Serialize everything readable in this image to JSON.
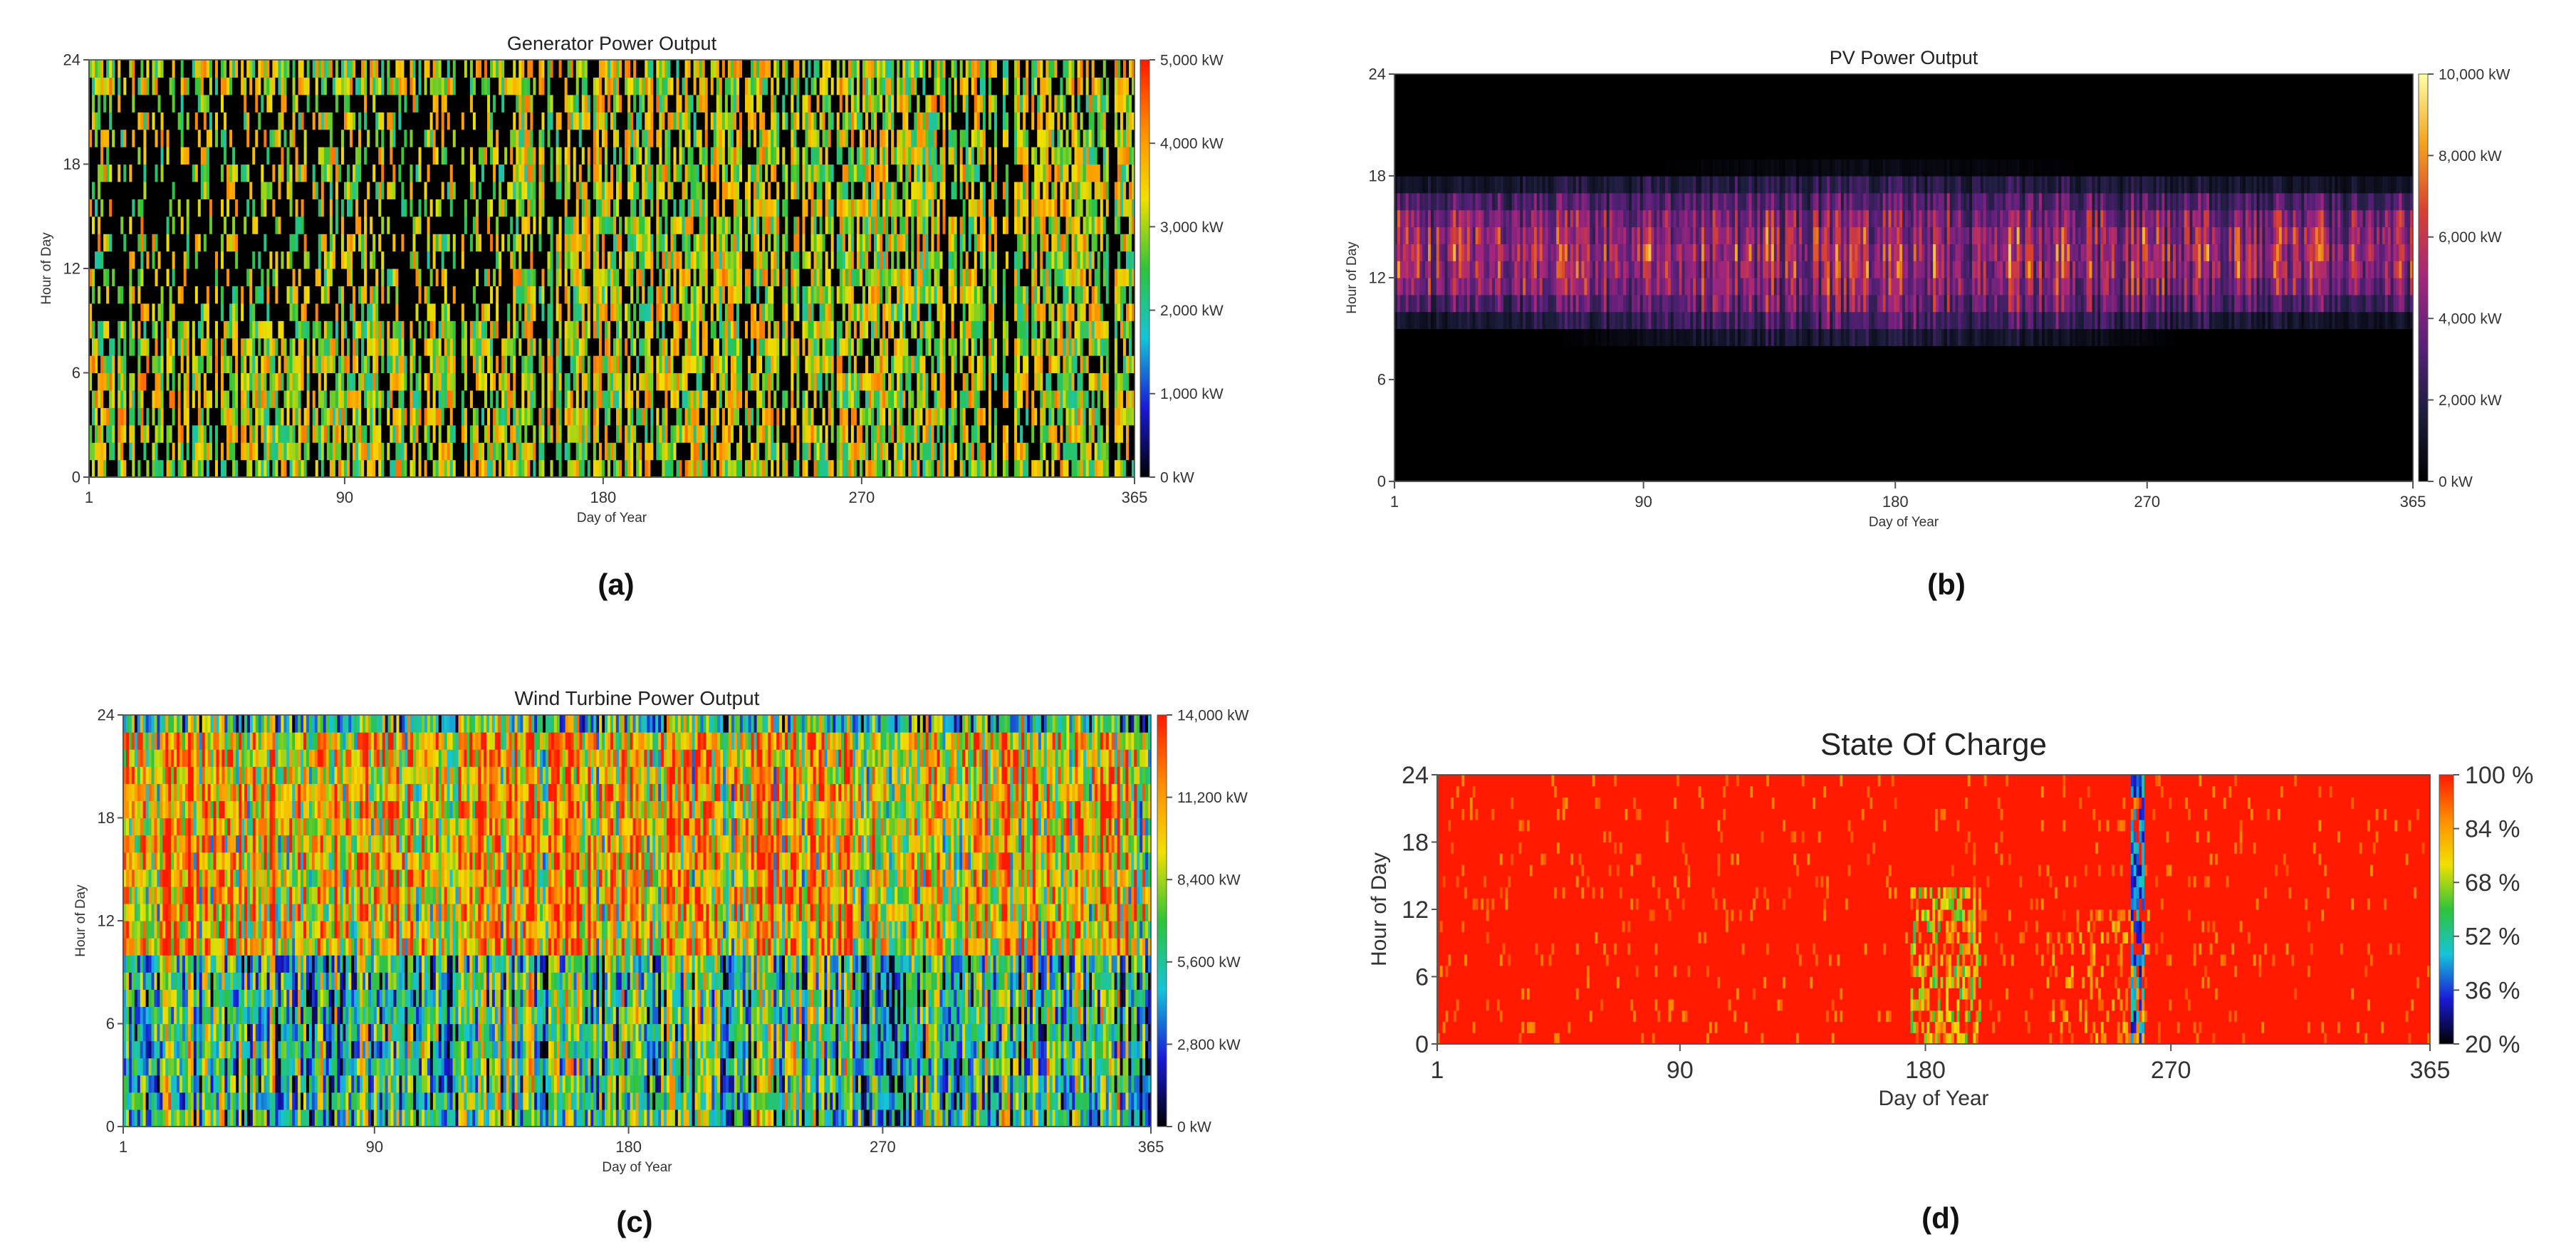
{
  "figure": {
    "panels": [
      "(a)",
      "(b)",
      "(c)",
      "(d)"
    ]
  },
  "chart_data": [
    {
      "type": "heatmap",
      "panel_label": "(a)",
      "title": "Generator Power Output",
      "xlabel": "Day of Year",
      "ylabel": "Hour of Day",
      "x_ticks": [
        1,
        90,
        180,
        270,
        365
      ],
      "y_ticks": [
        0,
        6,
        12,
        18,
        24
      ],
      "xlim": [
        1,
        365
      ],
      "ylim": [
        0,
        24
      ],
      "colorbar": {
        "ticks": [
          "0 kW",
          "1,000 kW",
          "2,000 kW",
          "3,000 kW",
          "4,000 kW",
          "5,000 kW"
        ],
        "min": 0,
        "max": 5000,
        "unit": "kW",
        "colors": [
          "#000000",
          "#1a1ad6",
          "#15c4d8",
          "#2fc33a",
          "#f0e000",
          "#ff8c00",
          "#ff1a00"
        ]
      },
      "pattern": "Vertical daily streaks; mostly 2,000–4,500 kW with zero (off) gaps, frequent zero periods 09:00–21:00 in early months and around days 90–150."
    },
    {
      "type": "heatmap",
      "panel_label": "(b)",
      "title": "PV Power Output",
      "xlabel": "Day of Year",
      "ylabel": "Hour of Day",
      "x_ticks": [
        1,
        90,
        180,
        270,
        365
      ],
      "y_ticks": [
        0,
        6,
        12,
        18,
        24
      ],
      "xlim": [
        1,
        365
      ],
      "ylim": [
        0,
        24
      ],
      "colorbar": {
        "ticks": [
          "0 kW",
          "2,000 kW",
          "4,000 kW",
          "6,000 kW",
          "8,000 kW",
          "10,000 kW"
        ],
        "min": 0,
        "max": 10000,
        "unit": "kW",
        "colors": [
          "#000000",
          "#1c1e3c",
          "#58207a",
          "#a3267c",
          "#d9412f",
          "#f4a41d",
          "#fcffa4"
        ]
      },
      "pattern": "Output only between about 07:00 and 18:00; peaks near midday reach 6,000–9,000 kW; zero at night."
    },
    {
      "type": "heatmap",
      "panel_label": "(c)",
      "title": "Wind Turbine Power Output",
      "xlabel": "Day of Year",
      "ylabel": "Hour of Day",
      "x_ticks": [
        1,
        90,
        180,
        270,
        365
      ],
      "y_ticks": [
        0,
        6,
        12,
        18,
        24
      ],
      "xlim": [
        1,
        365
      ],
      "ylim": [
        0,
        24
      ],
      "colorbar": {
        "ticks": [
          "0 kW",
          "2,800 kW",
          "5,600 kW",
          "8,400 kW",
          "11,200 kW",
          "14,000 kW"
        ],
        "min": 0,
        "max": 14000,
        "unit": "kW",
        "colors": [
          "#000000",
          "#1a1ad6",
          "#15c4d8",
          "#2fc33a",
          "#f0e000",
          "#ff8c00",
          "#ff1a00"
        ]
      },
      "pattern": "Highly variable; higher output (orange, ~11,000–13,000 kW) in the afternoon/evening hours, lower (blue/black) in the early morning."
    },
    {
      "type": "heatmap",
      "panel_label": "(d)",
      "title": "State Of Charge",
      "xlabel": "Day of Year",
      "ylabel": "Hour of Day",
      "x_ticks": [
        1,
        90,
        180,
        270,
        365
      ],
      "y_ticks": [
        0,
        6,
        12,
        18,
        24
      ],
      "xlim": [
        1,
        365
      ],
      "ylim": [
        0,
        24
      ],
      "colorbar": {
        "ticks": [
          "20 %",
          "36 %",
          "52 %",
          "68 %",
          "84 %",
          "100 %"
        ],
        "min": 20,
        "max": 100,
        "unit": "%",
        "colors": [
          "#000000",
          "#1a1ad6",
          "#15c4d8",
          "#2fc33a",
          "#f0e000",
          "#ff8c00",
          "#ff1a00"
        ]
      },
      "pattern": "Battery near 100% almost all year; brief dips to 50–70% around days 175–200 and a deep dip near day 260."
    }
  ]
}
